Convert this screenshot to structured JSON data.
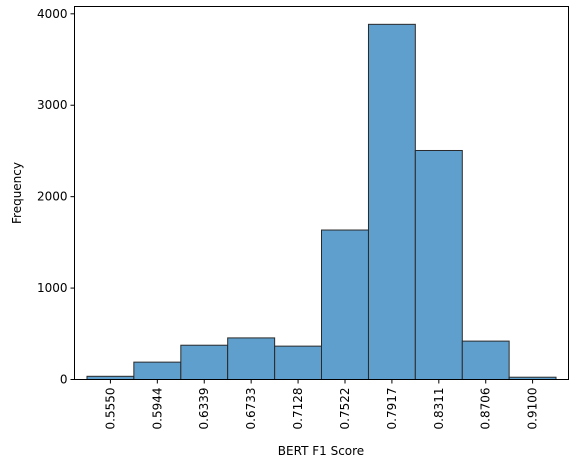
{
  "chart_data": {
    "type": "bar",
    "subtype": "histogram",
    "title": "",
    "xlabel": "BERT F1 Score",
    "ylabel": "Frequency",
    "bins": [
      {
        "start": 0.555,
        "end": 0.5944,
        "count": 35
      },
      {
        "start": 0.5944,
        "end": 0.6339,
        "count": 190
      },
      {
        "start": 0.6339,
        "end": 0.6733,
        "count": 375
      },
      {
        "start": 0.6733,
        "end": 0.7128,
        "count": 455
      },
      {
        "start": 0.7128,
        "end": 0.7522,
        "count": 365
      },
      {
        "start": 0.7522,
        "end": 0.7917,
        "count": 1635
      },
      {
        "start": 0.7917,
        "end": 0.8311,
        "count": 3885
      },
      {
        "start": 0.8311,
        "end": 0.8706,
        "count": 2505
      },
      {
        "start": 0.8706,
        "end": 0.91,
        "count": 420
      },
      {
        "start": 0.91,
        "end": 0.9494,
        "count": 25
      }
    ],
    "x_tick_labels": [
      "0.5550",
      "0.5944",
      "0.6339",
      "0.6733",
      "0.7128",
      "0.7522",
      "0.7917",
      "0.8311",
      "0.8706",
      "0.9100"
    ],
    "y_ticks": [
      0,
      1000,
      2000,
      3000,
      4000
    ],
    "ylim": [
      0,
      4080
    ],
    "bar_color": "#5f9fcd",
    "bar_edge_color": "#2a2a2a",
    "grid": false,
    "legend": "none"
  }
}
